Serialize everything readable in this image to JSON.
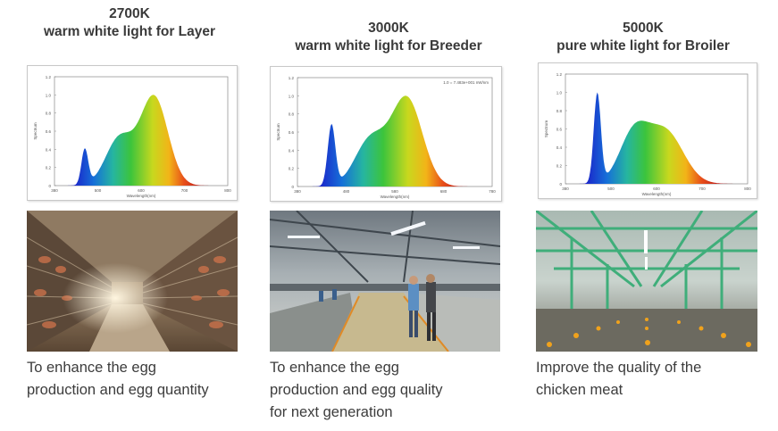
{
  "panels": [
    {
      "kelvin": "2700K",
      "subtitle": "warm white light for Layer",
      "caption_lines": [
        "To enhance the egg",
        "production and egg quantity"
      ],
      "spectrum": {
        "ylabel": "Spectrum",
        "xlabel": "Wavelength(nm)",
        "yticks": [
          "1.2",
          "1.0",
          "0.8",
          "0.6",
          "0.4",
          "0.2",
          "0"
        ],
        "xticks": [
          "380",
          "500",
          "600",
          "700",
          "800"
        ],
        "blue_peak": 0.3,
        "red_peak_nm": 610
      }
    },
    {
      "kelvin": "3000K",
      "subtitle": "warm white light for Breeder",
      "caption_lines": [
        "To enhance the egg",
        "production and egg quality",
        "for next generation"
      ],
      "spectrum": {
        "ylabel": "Spectrum",
        "xlabel": "Wavelength(nm)",
        "legend": "1.0 = 7.483e+001 nW/nm",
        "yticks": [
          "1.2",
          "1.0",
          "0.8",
          "0.6",
          "0.4",
          "0.2",
          "0"
        ],
        "xticks": [
          "380",
          "480",
          "580",
          "680",
          "780"
        ],
        "blue_peak": 0.52,
        "red_peak_nm": 605
      }
    },
    {
      "kelvin": "5000K",
      "subtitle": "pure white light for Broiler",
      "caption_lines": [
        "Improve the quality of the",
        "chicken meat"
      ],
      "spectrum": {
        "ylabel": "Spectrum",
        "xlabel": "Wavelength(nm)",
        "yticks": [
          "1.2",
          "1.0",
          "0.8",
          "0.6",
          "0.4",
          "0.2",
          "0"
        ],
        "xticks": [
          "380",
          "500",
          "600",
          "700",
          "800"
        ],
        "blue_peak": 1.0,
        "red_peak_nm": 600
      }
    }
  ],
  "colors": {
    "title": "#3a3a3a",
    "caption": "#3c3c3c"
  }
}
